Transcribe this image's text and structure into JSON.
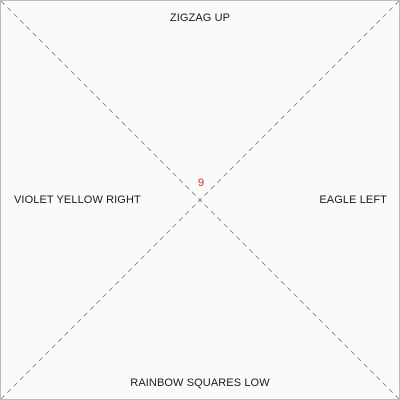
{
  "board": {
    "top_label": "ZIGZAG UP",
    "bottom_label": "RAINBOW SQUARES LOW",
    "left_label": "VIOLET YELLOW RIGHT",
    "right_label": "EAGLE LEFT",
    "center_number": "9"
  },
  "colors": {
    "border": "#bdbdbd",
    "background": "#fafafa",
    "diagonal": "#7a7a7a",
    "label_text": "#1a1a1a",
    "center_number": "#e0262b"
  }
}
